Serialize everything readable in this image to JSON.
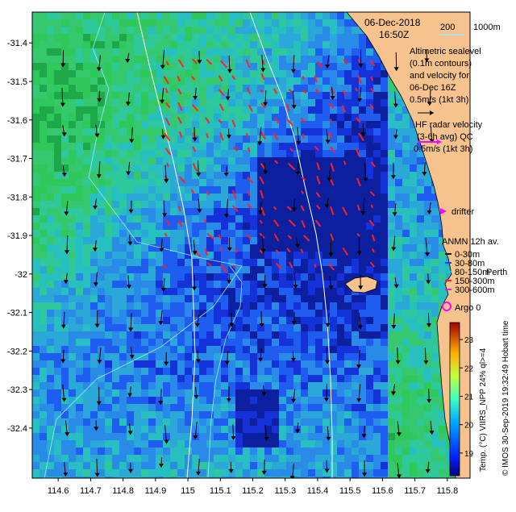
{
  "map": {
    "date": "06-Dec-2018",
    "time": "16:50Z",
    "isobath_legend": {
      "label_200": "200",
      "label_1000": "1000m",
      "color_200": "#9fe8ff",
      "color_1000": "#ffffff"
    },
    "altimetry_note": [
      "Altimetric sealevel",
      "(0.1m contours)",
      "and velocity for",
      "06-Dec 16Z"
    ],
    "altimetry_scale": "0.5m/s (1kt 3h)",
    "hf_note": [
      "HF radar velocity",
      "(3-6h avg) QC"
    ],
    "hf_scale": "0.5m/s (1kt 3h)",
    "drifter_label": "drifter",
    "anmn_title": "ANMN 12h av.",
    "anmn_depths": [
      {
        "label": "0-30m",
        "color": "#000000"
      },
      {
        "label": "30-80m",
        "color": "#1f3cff"
      },
      {
        "label": "80-150m",
        "color": "#00c8d8"
      },
      {
        "label": "150-300m",
        "color": "#ff2020"
      },
      {
        "label": "300-600m",
        "color": "#e020e0"
      }
    ],
    "place_label": "Perth",
    "argo_label": "Argo 0",
    "credit": "© IMOS 30-Sep-2019 19:32:49 Hobart time",
    "colorbar": {
      "title": "Temp. (°C) VIIRS_NPP 24% ql>=4",
      "ticks": [
        "19",
        "20",
        "21",
        "22",
        "23"
      ],
      "vmin": 18.2,
      "vmax": 23.6
    },
    "axes": {
      "x_ticks": [
        "114.6",
        "114.7",
        "114.8",
        "114.9",
        "115",
        "115.1",
        "115.2",
        "115.3",
        "115.4",
        "115.5",
        "115.6",
        "115.7",
        "115.8"
      ],
      "y_ticks": [
        "-31.4",
        "-31.5",
        "-31.6",
        "-31.7",
        "-31.8",
        "-31.9",
        "-32",
        "-32.1",
        "-32.2",
        "-32.3",
        "-32.4"
      ],
      "xlim": [
        114.52,
        115.87
      ],
      "ylim": [
        -32.53,
        -31.32
      ]
    },
    "colors": {
      "land": "#f6c28e",
      "sst_cool": "#1f3cff",
      "sst_warm": "#2fc85a",
      "hf_arrow": "#ff2020",
      "altimetry_arrow": "#000000",
      "drifter": "#ff00ff",
      "argo": "#ff00ff"
    }
  }
}
